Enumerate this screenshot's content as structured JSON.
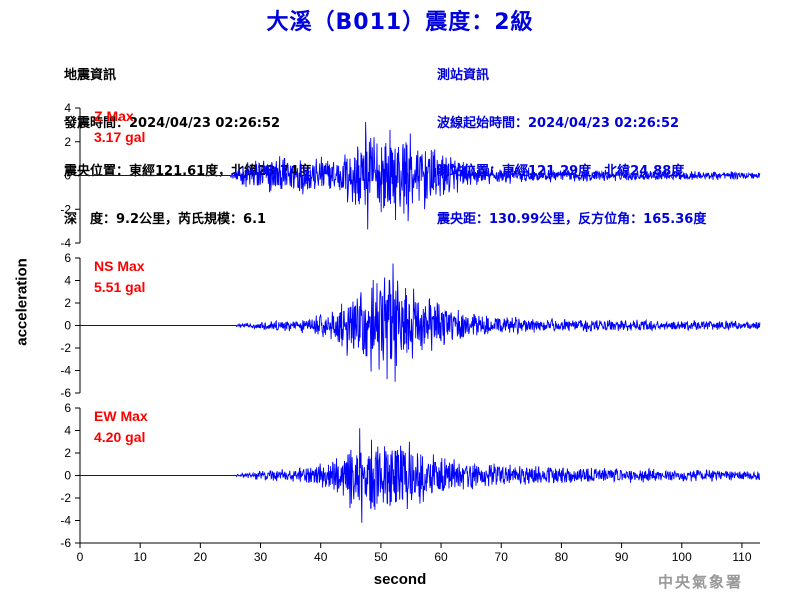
{
  "header": {
    "title": "大溪（B011）震度：2級"
  },
  "event_info": {
    "heading": "地震資訊",
    "origin_time": "發震時間：2024/04/23 02:26:52",
    "epicenter": "震央位置：東經121.61度，北緯23.74度",
    "depth_magnitude": "深　度：9.2公里，芮氏規模：6.1"
  },
  "station_info": {
    "heading": "測站資訊",
    "wave_start": "波線起始時間：2024/04/23 02:26:52",
    "station_location": "測站位置：東經121.29度，北緯24.88度",
    "distance_azimuth": "震央距：130.99公里，反方位角：165.36度"
  },
  "footer": {
    "agency": "中央氣象署"
  },
  "colors": {
    "title": "#0000dd",
    "trace": "#0000ff",
    "max_label": "#ff0000",
    "station_info": "#0000dd"
  },
  "chart_data": {
    "type": "line",
    "xlabel": "second",
    "ylabel": "acceleration",
    "xlim": [
      0,
      113
    ],
    "x_ticks": [
      0,
      10,
      20,
      30,
      40,
      50,
      60,
      70,
      80,
      90,
      100,
      110
    ],
    "grid": false,
    "panels": [
      {
        "name": "Z",
        "max_label": "Z Max",
        "max_value": "3.17 gal",
        "ylim": [
          -4,
          4
        ],
        "y_ticks": [
          -4,
          -2,
          0,
          2,
          4
        ],
        "onset_s": 25,
        "peak_time_s": 47.5,
        "min_value": -3.2,
        "envelope": [
          [
            25,
            0.1
          ],
          [
            27,
            0.7
          ],
          [
            30,
            1.2
          ],
          [
            38,
            1.1
          ],
          [
            43,
            1.2
          ],
          [
            45,
            2.0
          ],
          [
            48,
            2.7
          ],
          [
            55,
            2.7
          ],
          [
            58,
            2.1
          ],
          [
            62,
            1.2
          ],
          [
            66,
            0.6
          ],
          [
            72,
            0.5
          ],
          [
            80,
            0.4
          ],
          [
            95,
            0.3
          ],
          [
            113,
            0.25
          ]
        ]
      },
      {
        "name": "NS",
        "max_label": "NS Max",
        "max_value": "5.51 gal",
        "ylim": [
          -6,
          6
        ],
        "y_ticks": [
          -6,
          -4,
          -2,
          0,
          2,
          4,
          6
        ],
        "onset_s": 26,
        "peak_time_s": 52,
        "min_value": -5.0,
        "envelope": [
          [
            26,
            0.1
          ],
          [
            30,
            0.4
          ],
          [
            38,
            0.7
          ],
          [
            42,
            1.5
          ],
          [
            45,
            3.0
          ],
          [
            48,
            4.0
          ],
          [
            51,
            4.8
          ],
          [
            55,
            3.6
          ],
          [
            60,
            2.1
          ],
          [
            65,
            1.2
          ],
          [
            70,
            0.8
          ],
          [
            80,
            0.6
          ],
          [
            95,
            0.5
          ],
          [
            113,
            0.4
          ]
        ]
      },
      {
        "name": "EW",
        "max_label": "EW Max",
        "max_value": "4.20 gal",
        "ylim": [
          -6,
          6
        ],
        "y_ticks": [
          -6,
          -4,
          -2,
          0,
          2,
          4,
          6
        ],
        "onset_s": 26,
        "peak_time_s": 46.5,
        "min_value": -4.2,
        "envelope": [
          [
            26,
            0.1
          ],
          [
            30,
            0.5
          ],
          [
            38,
            0.8
          ],
          [
            42,
            1.6
          ],
          [
            45,
            3.0
          ],
          [
            48,
            3.8
          ],
          [
            52,
            3.6
          ],
          [
            57,
            2.6
          ],
          [
            62,
            1.5
          ],
          [
            70,
            1.0
          ],
          [
            80,
            0.8
          ],
          [
            95,
            0.6
          ],
          [
            113,
            0.5
          ]
        ]
      }
    ]
  }
}
